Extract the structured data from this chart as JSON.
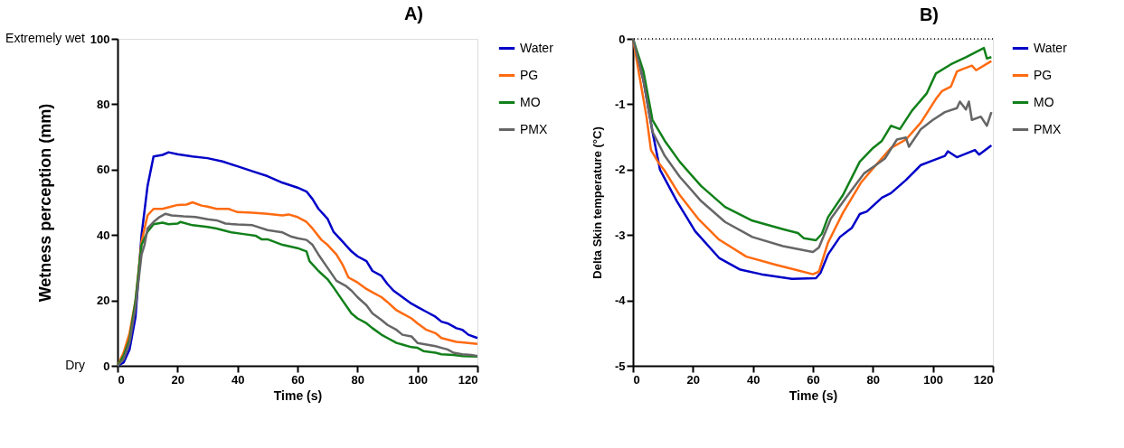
{
  "chart_data": [
    {
      "type": "line",
      "title": "A)",
      "xlabel": "Time (s)",
      "ylabel": "Wetness perception (mm)",
      "xlim": [
        0,
        120
      ],
      "ylim": [
        0,
        100
      ],
      "xticks": [
        0,
        20,
        40,
        60,
        80,
        100,
        120
      ],
      "yticks": [
        0,
        20,
        40,
        60,
        80,
        100
      ],
      "grid": false,
      "legend": "right",
      "line_style": "solid",
      "marker": "none",
      "annotations": [
        "Extremely wet",
        "Dry"
      ],
      "series": [
        {
          "name": "Water",
          "color": "#0000c8",
          "x": [
            0,
            2,
            4,
            6,
            8,
            10,
            12,
            15,
            17,
            20,
            25,
            30,
            35,
            40,
            45,
            50,
            55,
            60,
            63,
            65,
            67,
            70,
            72,
            75,
            78,
            80,
            83,
            85,
            88,
            90,
            92,
            95,
            98,
            100,
            103,
            106,
            108,
            110,
            113,
            115,
            117,
            120
          ],
          "values": [
            0,
            1,
            5,
            15,
            40,
            55,
            64,
            64.5,
            65.3,
            64.7,
            64,
            63.5,
            62.5,
            61,
            59.5,
            58,
            56,
            54.5,
            53.3,
            51,
            48,
            45,
            41,
            38,
            35,
            33.5,
            32,
            29,
            27.5,
            25,
            23,
            21,
            19,
            18,
            16.5,
            15,
            13.5,
            13,
            11.5,
            11,
            9.5,
            8.5
          ]
        },
        {
          "name": "PG",
          "color": "#ff6a10",
          "x": [
            0,
            2,
            4,
            6,
            8,
            10,
            12,
            15,
            17,
            20,
            23,
            25,
            28,
            30,
            33,
            37,
            40,
            45,
            50,
            55,
            57,
            60,
            63,
            65,
            68,
            70,
            73,
            75,
            77,
            80,
            83,
            85,
            88,
            90,
            93,
            95,
            98,
            100,
            103,
            106,
            108,
            110,
            113,
            117,
            120
          ],
          "values": [
            0,
            4,
            10,
            20,
            38,
            46,
            48,
            48,
            48.5,
            49.2,
            49.3,
            50,
            49,
            48.7,
            48,
            48,
            47,
            46.8,
            46.5,
            46,
            46.3,
            45.5,
            44,
            42,
            38.5,
            37,
            34,
            31,
            27,
            25.5,
            23.5,
            22.5,
            21,
            19.5,
            17,
            16,
            14.5,
            13,
            11,
            10,
            8.5,
            8,
            7.3,
            7,
            6.7
          ]
        },
        {
          "name": "MO",
          "color": "#11801a",
          "x": [
            0,
            2,
            4,
            6,
            8,
            10,
            12,
            15,
            17,
            20,
            21,
            25,
            30,
            33,
            35,
            38,
            42,
            46,
            48,
            50,
            55,
            60,
            63,
            64,
            67,
            70,
            72,
            75,
            78,
            80,
            83,
            85,
            88,
            90,
            93,
            95,
            98,
            100,
            102,
            106,
            108,
            112,
            115,
            120
          ],
          "values": [
            0,
            3,
            8,
            20,
            37,
            41,
            43.3,
            43.8,
            43.3,
            43.5,
            44,
            43,
            42.5,
            42,
            41.5,
            40.8,
            40.3,
            39.8,
            38.7,
            38.7,
            37,
            36,
            35,
            32,
            29,
            26.5,
            24,
            20,
            16,
            14.5,
            13,
            11.5,
            9.5,
            8.5,
            7,
            6.5,
            5.7,
            5.5,
            4.5,
            4,
            3.5,
            3.3,
            3,
            2.8
          ]
        },
        {
          "name": "PMX",
          "color": "#666666",
          "x": [
            0,
            2,
            4,
            6,
            8,
            9,
            10,
            12,
            14,
            16,
            18,
            22,
            26,
            30,
            33,
            36,
            40,
            45,
            50,
            55,
            58,
            60,
            63,
            65,
            67,
            70,
            73,
            76,
            78,
            80,
            83,
            85,
            88,
            90,
            93,
            95,
            98,
            100,
            103,
            106,
            108,
            110,
            112,
            115,
            118,
            120
          ],
          "values": [
            0,
            2,
            7,
            18,
            34,
            37,
            42,
            44,
            45.5,
            46.5,
            46,
            45.7,
            45.5,
            44.8,
            44.5,
            43.5,
            43.2,
            43,
            41.5,
            40.8,
            39.5,
            39,
            38.5,
            37,
            34,
            30,
            26,
            24.5,
            23,
            21,
            18.5,
            16,
            14,
            12.5,
            11,
            9.5,
            9,
            7,
            6.5,
            6,
            5.5,
            5,
            4,
            3.5,
            3.3,
            3
          ]
        }
      ]
    },
    {
      "type": "line",
      "title": "B)",
      "xlabel": "Time (s)",
      "ylabel": "Delta Skin temperature (°C)",
      "xlim": [
        0,
        120
      ],
      "ylim": [
        -5,
        0
      ],
      "xticks": [
        0,
        20,
        40,
        60,
        80,
        100,
        120
      ],
      "yticks": [
        -5,
        -4,
        -3,
        -2,
        -1,
        0
      ],
      "grid": false,
      "legend": "right",
      "line_style": "solid",
      "marker": "none",
      "ref_lines": [
        {
          "axis": "y",
          "value": 0,
          "color": "#000000",
          "line_style": "dotted"
        }
      ],
      "series": [
        {
          "name": "Water",
          "color": "#0000c8",
          "x": [
            0,
            3.5,
            6.5,
            9,
            14.6,
            20.7,
            28.7,
            35.8,
            42.8,
            53,
            61,
            62.5,
            65,
            69,
            73,
            75.6,
            78,
            83,
            86,
            91,
            96,
            100,
            104,
            105,
            108,
            114,
            115.4,
            119.5
          ],
          "values": [
            0,
            -0.64,
            -1.42,
            -2.0,
            -2.48,
            -2.94,
            -3.35,
            -3.53,
            -3.6,
            -3.67,
            -3.66,
            -3.58,
            -3.3,
            -3.03,
            -2.89,
            -2.68,
            -2.64,
            -2.43,
            -2.36,
            -2.16,
            -1.93,
            -1.86,
            -1.79,
            -1.72,
            -1.81,
            -1.7,
            -1.77,
            -1.63
          ]
        },
        {
          "name": "PG",
          "color": "#ff6a10",
          "x": [
            0,
            4.5,
            6,
            8.6,
            10.6,
            15.6,
            21.7,
            28.7,
            37.8,
            48,
            54,
            60,
            62,
            65,
            70,
            76,
            81,
            86,
            91,
            96,
            101,
            103,
            106,
            108,
            110,
            113,
            114.4,
            119.5
          ],
          "values": [
            0,
            -1.19,
            -1.7,
            -1.9,
            -2.02,
            -2.39,
            -2.75,
            -3.07,
            -3.33,
            -3.46,
            -3.53,
            -3.6,
            -3.56,
            -3.12,
            -2.66,
            -2.2,
            -1.93,
            -1.67,
            -1.54,
            -1.28,
            -0.92,
            -0.8,
            -0.73,
            -0.5,
            -0.46,
            -0.41,
            -0.48,
            -0.34
          ]
        },
        {
          "name": "MO",
          "color": "#11801a",
          "x": [
            0,
            3.5,
            6.5,
            10.6,
            15.6,
            22.7,
            30.7,
            39.8,
            50,
            55,
            57,
            61,
            63,
            65,
            70,
            75.6,
            80,
            83,
            86,
            89,
            93,
            98,
            101,
            106,
            111,
            117,
            118,
            119.5
          ],
          "values": [
            0,
            -0.5,
            -1.24,
            -1.56,
            -1.88,
            -2.25,
            -2.57,
            -2.78,
            -2.91,
            -2.97,
            -3.05,
            -3.08,
            -2.98,
            -2.73,
            -2.39,
            -1.88,
            -1.67,
            -1.56,
            -1.33,
            -1.38,
            -1.1,
            -0.83,
            -0.53,
            -0.39,
            -0.28,
            -0.14,
            -0.3,
            -0.28
          ]
        },
        {
          "name": "PMX",
          "color": "#666666",
          "x": [
            0,
            3.5,
            6.5,
            10.6,
            15.6,
            22.7,
            30.7,
            39.8,
            50,
            60,
            62,
            66,
            71,
            77,
            81,
            84,
            88,
            91,
            92,
            96,
            100,
            104,
            108,
            109,
            111,
            112,
            113,
            116,
            118,
            119.5
          ],
          "values": [
            0,
            -0.64,
            -1.42,
            -1.79,
            -2.11,
            -2.48,
            -2.8,
            -3.03,
            -3.17,
            -3.26,
            -3.19,
            -2.75,
            -2.43,
            -2.06,
            -1.93,
            -1.83,
            -1.54,
            -1.51,
            -1.65,
            -1.38,
            -1.24,
            -1.12,
            -1.06,
            -0.96,
            -1.08,
            -0.96,
            -1.24,
            -1.19,
            -1.33,
            -1.12
          ]
        }
      ]
    }
  ]
}
